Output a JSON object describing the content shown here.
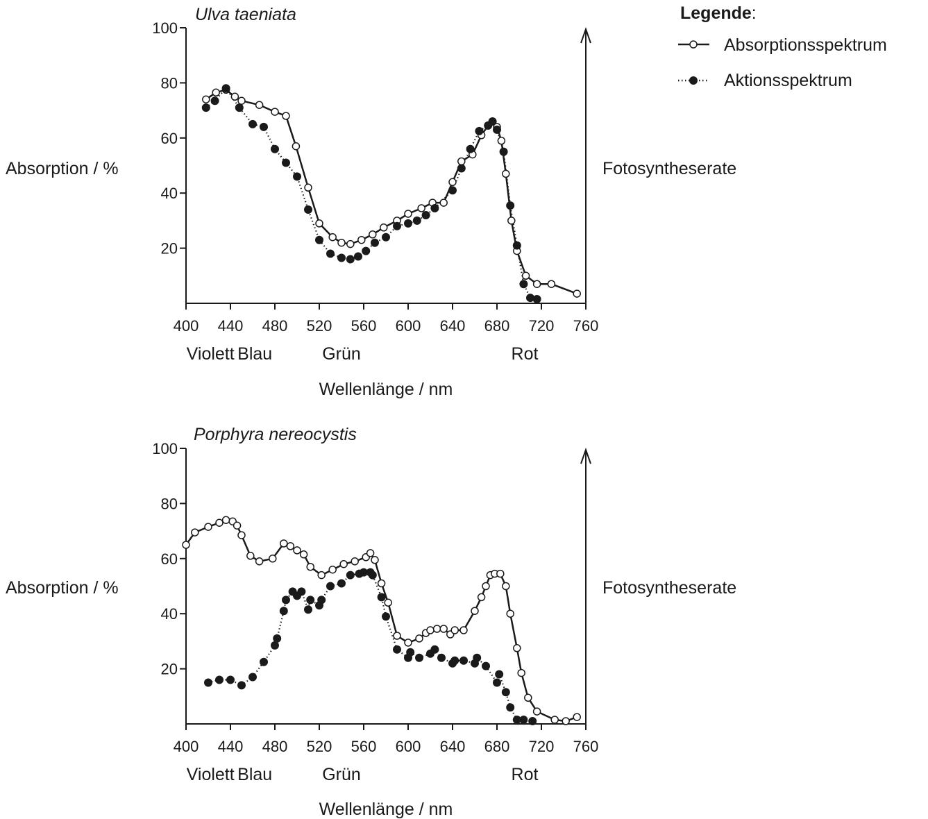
{
  "legend": {
    "title": "Legende",
    "title_suffix": ":",
    "items": [
      {
        "label": "Absorptionsspektrum",
        "style": "solid line, open circles"
      },
      {
        "label": "Aktionsspektrum",
        "style": "dotted line, filled circles"
      }
    ]
  },
  "chart_data": [
    {
      "type": "line",
      "title": "Ulva taeniata",
      "ylabel": "Absorption / %",
      "ylabel_right": "Fotosyntheserate",
      "xlabel": "Wellenlänge / nm",
      "xlim": [
        400,
        760
      ],
      "ylim": [
        0,
        100
      ],
      "xticks": [
        400,
        440,
        480,
        520,
        560,
        600,
        640,
        680,
        720,
        760
      ],
      "yticks": [
        20,
        40,
        60,
        80,
        100
      ],
      "regions": [
        {
          "label": "Violett",
          "x": 422
        },
        {
          "label": "Blau",
          "x": 462
        },
        {
          "label": "Grün",
          "x": 540
        },
        {
          "label": "Rot",
          "x": 705
        }
      ],
      "series": [
        {
          "name": "Absorptionsspektrum",
          "x": [
            418,
            427,
            436,
            444,
            450,
            466,
            480,
            490,
            499,
            510,
            520,
            532,
            540,
            548,
            558,
            568,
            578,
            590,
            600,
            612,
            622,
            632,
            640,
            648,
            658,
            666,
            672,
            676,
            680,
            684,
            688,
            693,
            698,
            706,
            716,
            729,
            752
          ],
          "y": [
            74,
            76.5,
            77.5,
            75,
            73.5,
            72,
            69.5,
            68,
            57,
            42,
            29,
            24,
            22,
            21.5,
            23,
            25,
            27.5,
            30,
            32.5,
            34.5,
            36.5,
            36.5,
            44,
            51.5,
            54,
            61,
            64.5,
            66,
            64,
            59,
            47,
            30,
            19,
            10,
            7,
            7,
            3.5
          ]
        },
        {
          "name": "Aktionsspektrum",
          "x": [
            418,
            426,
            436,
            448,
            460,
            470,
            480,
            490,
            500,
            510,
            520,
            530,
            540,
            548,
            555,
            562,
            570,
            580,
            590,
            600,
            608,
            616,
            624,
            640,
            648,
            656,
            664,
            672,
            676,
            680,
            686,
            692,
            698,
            704,
            710,
            716
          ],
          "y": [
            71,
            73.5,
            78,
            71,
            65,
            64,
            56,
            51,
            46,
            34,
            23,
            18,
            16.5,
            16,
            17,
            19,
            22,
            24,
            28,
            29,
            30,
            32,
            34.5,
            41,
            49,
            56,
            62.5,
            64.5,
            66,
            63,
            55,
            35.5,
            21,
            7,
            2,
            1.5
          ]
        }
      ]
    },
    {
      "type": "line",
      "title": "Porphyra nereocystis",
      "ylabel": "Absorption / %",
      "ylabel_right": "Fotosyntheserate",
      "xlabel": "Wellenlänge / nm",
      "xlim": [
        400,
        760
      ],
      "ylim": [
        0,
        100
      ],
      "xticks": [
        400,
        440,
        480,
        520,
        560,
        600,
        640,
        680,
        720,
        760
      ],
      "yticks": [
        20,
        40,
        60,
        80,
        100
      ],
      "regions": [
        {
          "label": "Violett",
          "x": 422
        },
        {
          "label": "Blau",
          "x": 462
        },
        {
          "label": "Grün",
          "x": 540
        },
        {
          "label": "Rot",
          "x": 705
        }
      ],
      "series": [
        {
          "name": "Absorptionsspektrum",
          "x": [
            400,
            408,
            420,
            430,
            436,
            442,
            446,
            450,
            458,
            466,
            478,
            488,
            494,
            500,
            506,
            512,
            522,
            532,
            542,
            552,
            562,
            566,
            570,
            576,
            582,
            590,
            600,
            610,
            616,
            620,
            626,
            632,
            638,
            642,
            650,
            660,
            666,
            670,
            674,
            678,
            683,
            688,
            692,
            698,
            702,
            708,
            716,
            732,
            742,
            752
          ],
          "y": [
            65,
            69.5,
            71.5,
            73,
            74,
            73.5,
            72,
            68.5,
            61,
            59,
            60,
            65.5,
            64.5,
            63,
            61.5,
            57,
            54,
            56,
            58,
            59,
            60.5,
            62,
            59.5,
            51,
            44,
            32,
            29.5,
            31,
            33,
            34,
            34.5,
            34.5,
            32.5,
            34,
            34,
            41,
            46,
            50,
            54,
            54.5,
            54.5,
            50,
            40,
            27.5,
            18.5,
            9.5,
            4.5,
            1.5,
            1,
            2.5
          ]
        },
        {
          "name": "Aktionsspektrum",
          "x": [
            420,
            430,
            440,
            450,
            460,
            470,
            480,
            482,
            488,
            490,
            496,
            500,
            504,
            510,
            512,
            520,
            522,
            530,
            540,
            548,
            556,
            560,
            566,
            568,
            576,
            580,
            590,
            600,
            602,
            610,
            620,
            624,
            630,
            640,
            642,
            650,
            660,
            662,
            670,
            680,
            682,
            688,
            692,
            698,
            704,
            712
          ],
          "y": [
            15,
            16,
            16,
            14,
            17,
            22.5,
            28.5,
            31,
            41,
            45,
            48,
            46.5,
            48,
            41.5,
            45,
            43,
            45,
            50,
            51,
            54,
            54.5,
            55,
            55,
            54,
            46,
            39,
            27,
            24,
            26,
            24,
            25.5,
            27,
            24,
            22,
            23,
            23,
            22,
            24,
            21,
            15,
            18,
            11.5,
            6,
            1.5,
            1.5,
            1
          ]
        }
      ]
    }
  ]
}
